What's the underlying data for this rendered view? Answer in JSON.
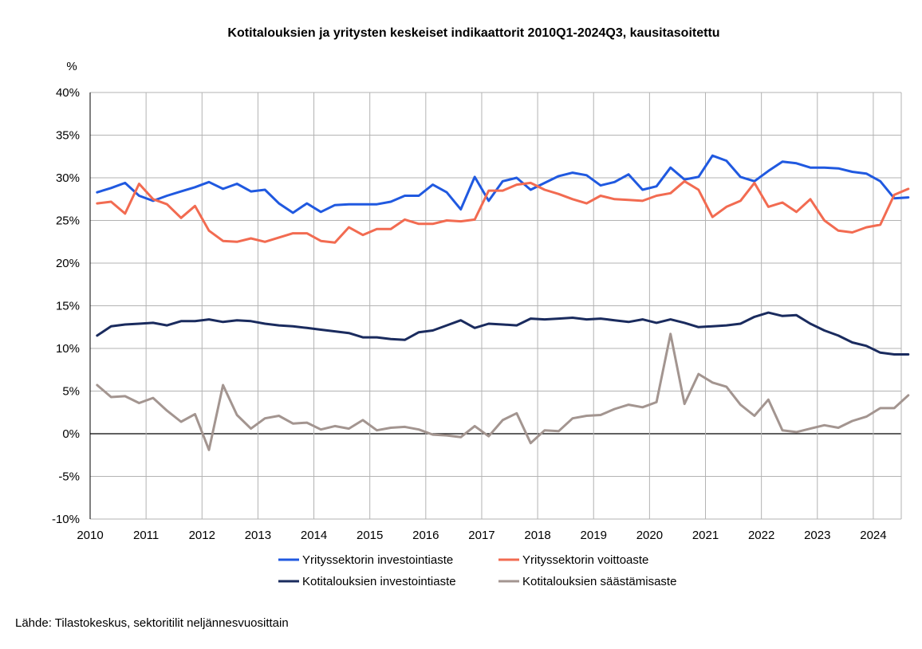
{
  "chart_data": {
    "type": "line",
    "title": "Kotitalouksien ja yritysten keskeiset indikaattorit 2010Q1-2024Q3, kausitasoitettu",
    "ylabel": "%",
    "ylim": [
      -10,
      40
    ],
    "yticks": [
      40,
      35,
      30,
      25,
      20,
      15,
      10,
      5,
      0,
      -5,
      -10
    ],
    "ytick_labels": [
      "40%",
      "35%",
      "30%",
      "25%",
      "20%",
      "15%",
      "10%",
      "5%",
      "0%",
      "-5%",
      "-10%"
    ],
    "xlim": [
      2010,
      2024.5
    ],
    "xticks": [
      "2010",
      "2011",
      "2012",
      "2013",
      "2014",
      "2015",
      "2016",
      "2017",
      "2018",
      "2019",
      "2020",
      "2021",
      "2022",
      "2023",
      "2024"
    ],
    "grid": true,
    "legend_position": "bottom",
    "x": [
      "2010Q1",
      "2010Q2",
      "2010Q3",
      "2010Q4",
      "2011Q1",
      "2011Q2",
      "2011Q3",
      "2011Q4",
      "2012Q1",
      "2012Q2",
      "2012Q3",
      "2012Q4",
      "2013Q1",
      "2013Q2",
      "2013Q3",
      "2013Q4",
      "2014Q1",
      "2014Q2",
      "2014Q3",
      "2014Q4",
      "2015Q1",
      "2015Q2",
      "2015Q3",
      "2015Q4",
      "2016Q1",
      "2016Q2",
      "2016Q3",
      "2016Q4",
      "2017Q1",
      "2017Q2",
      "2017Q3",
      "2017Q4",
      "2018Q1",
      "2018Q2",
      "2018Q3",
      "2018Q4",
      "2019Q1",
      "2019Q2",
      "2019Q3",
      "2019Q4",
      "2020Q1",
      "2020Q2",
      "2020Q3",
      "2020Q4",
      "2021Q1",
      "2021Q2",
      "2021Q3",
      "2021Q4",
      "2022Q1",
      "2022Q2",
      "2022Q3",
      "2022Q4",
      "2023Q1",
      "2023Q2",
      "2023Q3",
      "2023Q4",
      "2024Q1",
      "2024Q2",
      "2024Q3"
    ],
    "series": [
      {
        "name": "Yrityssektorin investointiaste",
        "color": "#2059e0",
        "values": [
          28.3,
          28.8,
          29.4,
          27.9,
          27.3,
          27.9,
          28.4,
          28.9,
          29.5,
          28.7,
          29.3,
          28.4,
          28.6,
          27.0,
          25.9,
          27.0,
          26.0,
          26.8,
          26.9,
          26.9,
          26.9,
          27.2,
          27.9,
          27.9,
          29.2,
          28.3,
          26.3,
          30.1,
          27.3,
          29.6,
          30.0,
          28.6,
          29.4,
          30.2,
          30.6,
          30.3,
          29.1,
          29.5,
          30.4,
          28.6,
          29.0,
          31.2,
          29.8,
          30.1,
          32.6,
          32.0,
          30.1,
          29.6,
          30.8,
          31.9,
          31.7,
          31.2,
          31.2,
          31.1,
          30.7,
          30.5,
          29.6,
          27.6,
          27.7
        ]
      },
      {
        "name": "Yrityssektorin voittoaste",
        "color": "#f26b51",
        "values": [
          27.0,
          27.2,
          25.8,
          29.3,
          27.5,
          26.9,
          25.3,
          26.7,
          23.8,
          22.6,
          22.5,
          22.9,
          22.5,
          23.0,
          23.5,
          23.5,
          22.6,
          22.4,
          24.2,
          23.3,
          24.0,
          24.0,
          25.1,
          24.6,
          24.6,
          25.0,
          24.9,
          25.1,
          28.5,
          28.5,
          29.2,
          29.4,
          28.6,
          28.1,
          27.5,
          27.0,
          27.9,
          27.5,
          27.4,
          27.3,
          27.9,
          28.2,
          29.6,
          28.6,
          25.4,
          26.6,
          27.3,
          29.4,
          26.6,
          27.1,
          26.0,
          27.5,
          25.0,
          23.8,
          23.6,
          24.2,
          24.5,
          28.0,
          28.7
        ]
      },
      {
        "name": "Kotitalouksien investointiaste",
        "color": "#1a2b5e",
        "values": [
          11.5,
          12.6,
          12.8,
          12.9,
          13.0,
          12.7,
          13.2,
          13.2,
          13.4,
          13.1,
          13.3,
          13.2,
          12.9,
          12.7,
          12.6,
          12.4,
          12.2,
          12.0,
          11.8,
          11.3,
          11.3,
          11.1,
          11.0,
          11.9,
          12.1,
          12.7,
          13.3,
          12.4,
          12.9,
          12.8,
          12.7,
          13.5,
          13.4,
          13.5,
          13.6,
          13.4,
          13.5,
          13.3,
          13.1,
          13.4,
          13.0,
          13.4,
          13.0,
          12.5,
          12.6,
          12.7,
          12.9,
          13.7,
          14.2,
          13.8,
          13.9,
          12.9,
          12.1,
          11.5,
          10.7,
          10.3,
          9.5,
          9.3,
          9.3
        ]
      },
      {
        "name": "Kotitalouksien säästämisaste",
        "color": "#a39590",
        "values": [
          5.7,
          4.3,
          4.4,
          3.6,
          4.2,
          2.7,
          1.4,
          2.3,
          -1.9,
          5.7,
          2.2,
          0.6,
          1.8,
          2.1,
          1.2,
          1.3,
          0.5,
          0.9,
          0.6,
          1.6,
          0.4,
          0.7,
          0.8,
          0.5,
          -0.1,
          -0.2,
          -0.4,
          0.9,
          -0.3,
          1.6,
          2.4,
          -1.1,
          0.4,
          0.3,
          1.8,
          2.1,
          2.2,
          2.9,
          3.4,
          3.1,
          3.7,
          11.7,
          3.5,
          7.0,
          6.0,
          5.5,
          3.4,
          2.1,
          4.0,
          0.4,
          0.2,
          0.6,
          1.0,
          0.7,
          1.5,
          2.0,
          3.0,
          3.0,
          4.5
        ]
      }
    ]
  },
  "source": "Lähde: Tilastokeskus, sektoritilit neljännesvuosittain"
}
